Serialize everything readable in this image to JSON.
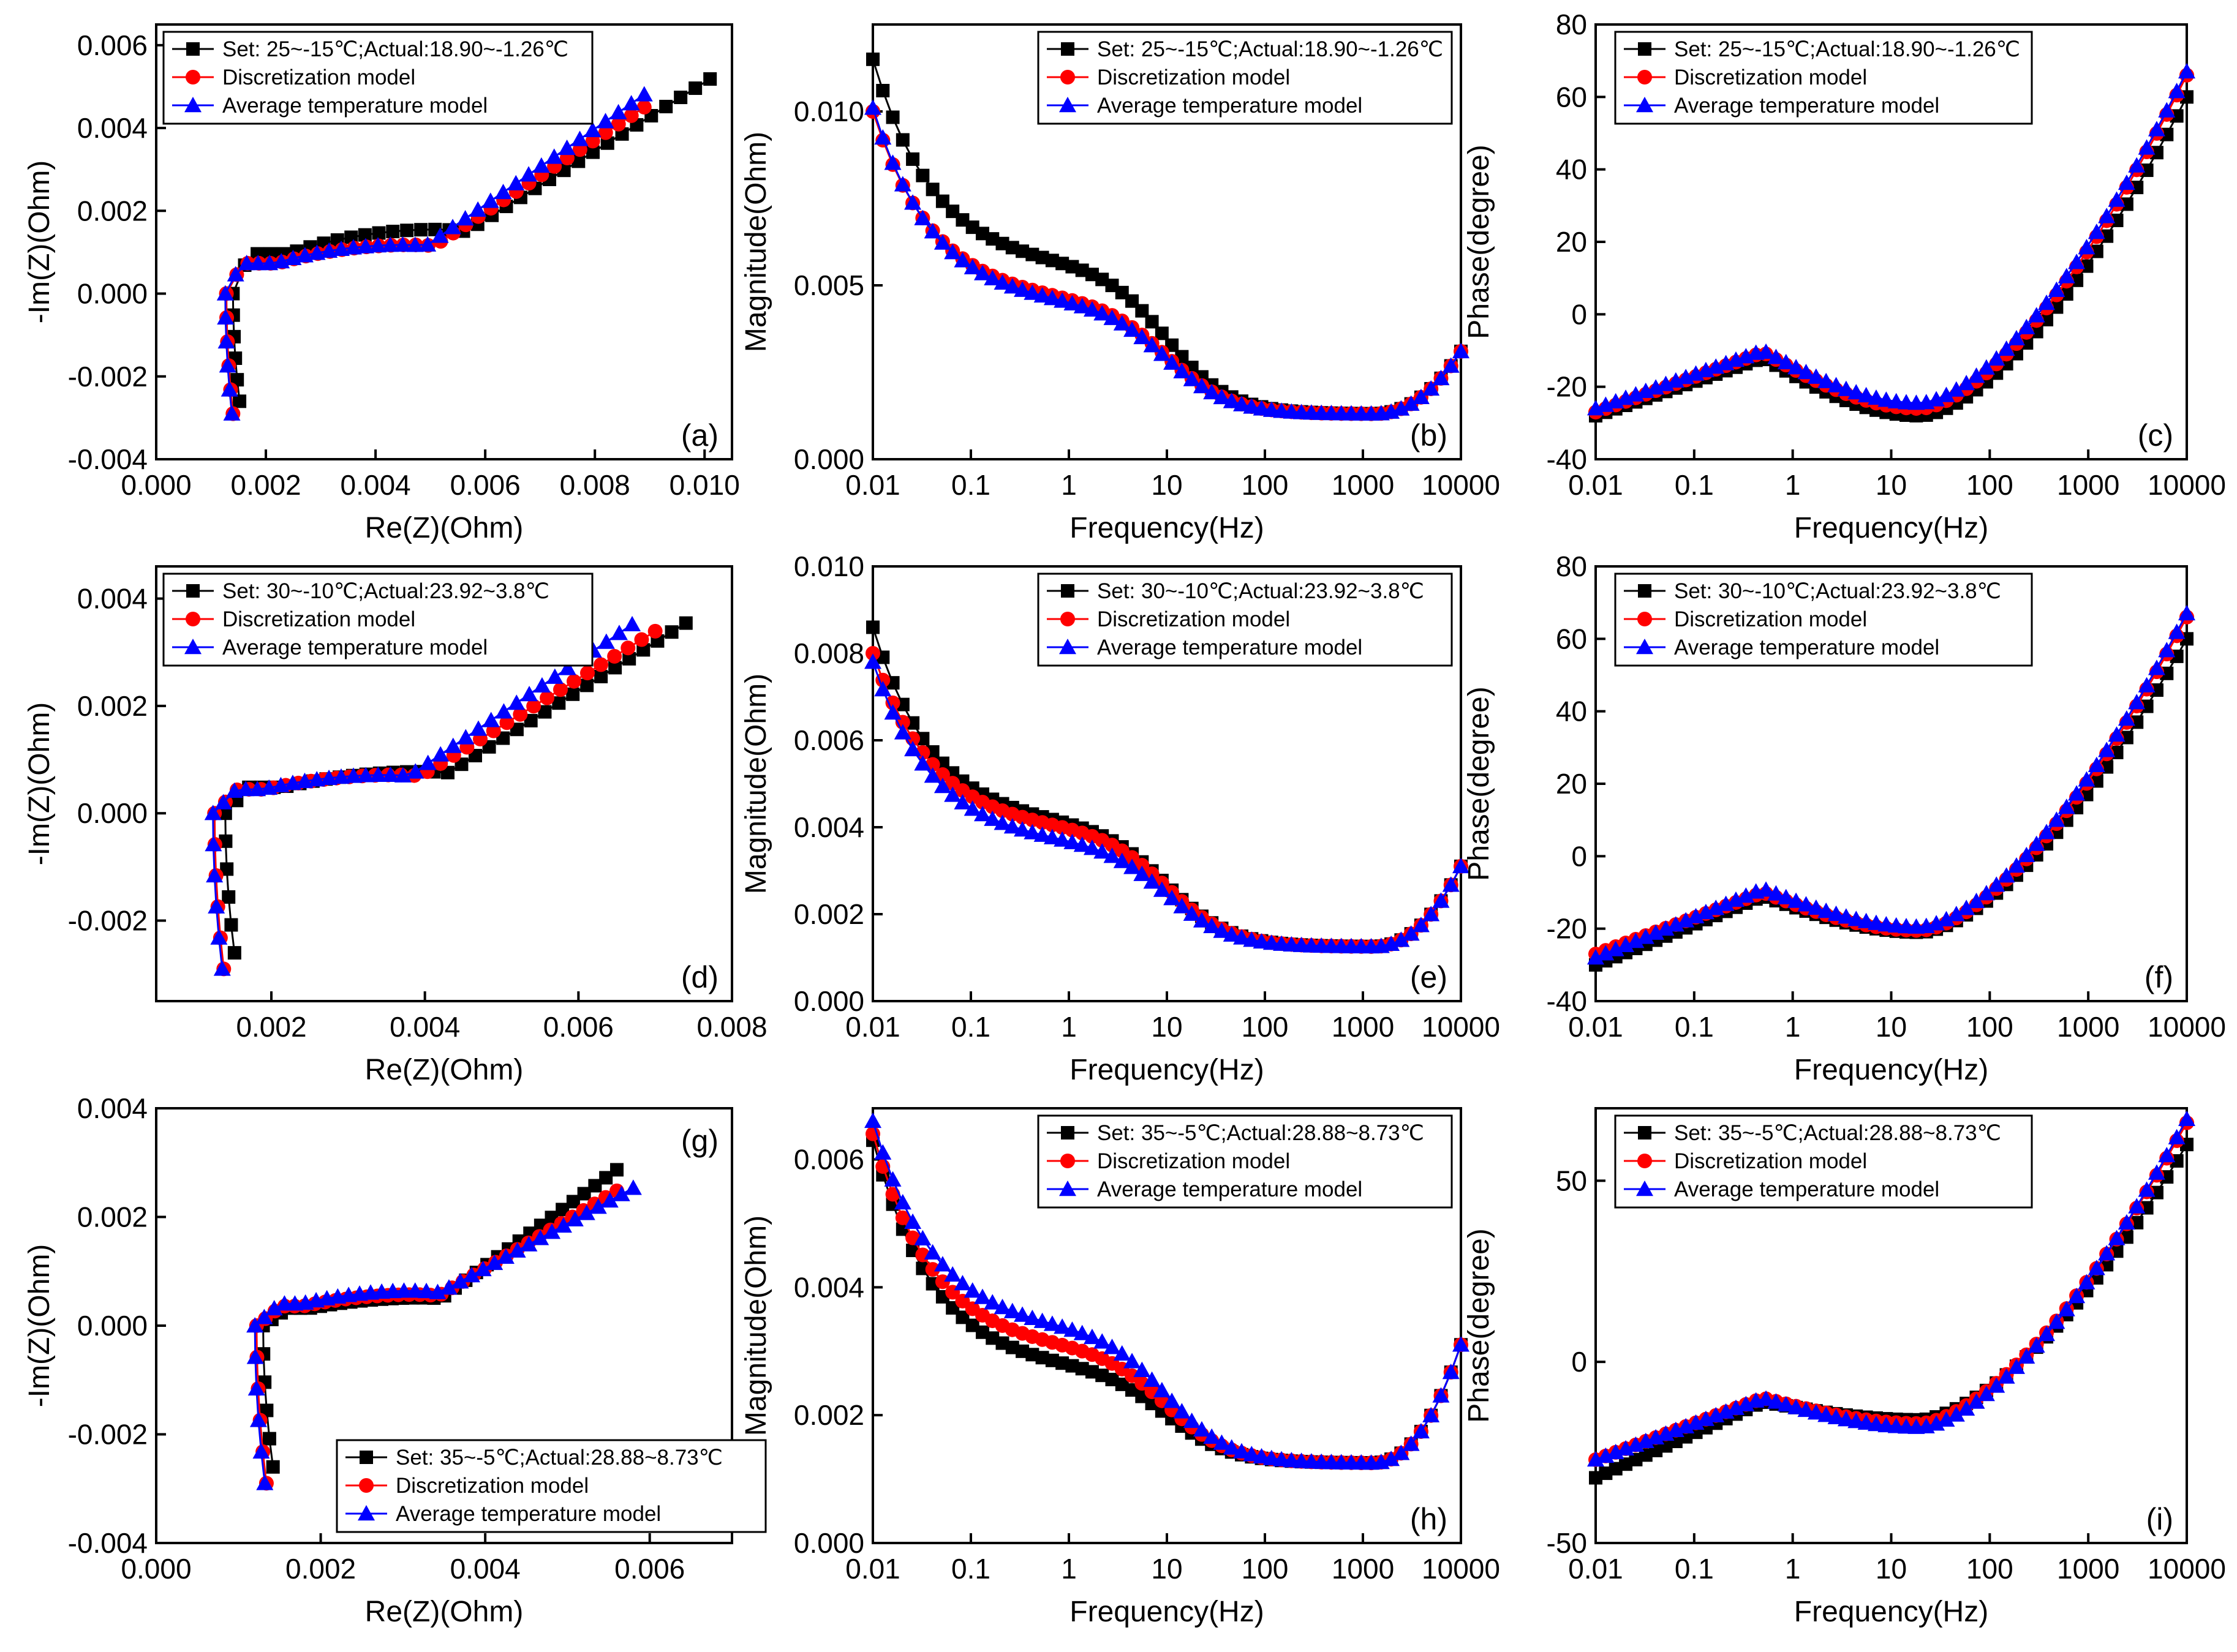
{
  "figure": {
    "description_title": ""
  },
  "colors": {
    "set": "#000000",
    "disc": "#ff0000",
    "avg": "#0000ff"
  },
  "markers": {
    "set": "square",
    "disc": "circle",
    "avg": "triangle"
  },
  "rows": [
    {
      "legend": {
        "set": "Set: 25~-15℃;Actual:18.90~-1.26℃",
        "disc": "Discretization model",
        "avg": "Average temperature model"
      },
      "nyquist": {
        "xlim": [
          0.0,
          0.0105
        ],
        "ylim": [
          -0.004,
          0.0065
        ],
        "xticks": [
          "0.000",
          "0.002",
          "0.004",
          "0.006",
          "0.008",
          "0.010"
        ],
        "yticks": [
          "-0.004",
          "-0.002",
          "0.000",
          "0.002",
          "0.004",
          "0.006"
        ],
        "Rs": [
          0.0014,
          0.00128,
          0.00126
        ],
        "Rct": [
          0.0036,
          0.0033,
          0.0032
        ],
        "Ct": [
          0.00155,
          0.00118,
          0.00118
        ],
        "slope": [
          0.92,
          0.97,
          1.02
        ],
        "endX": [
          0.0101,
          0.0089,
          0.0089
        ],
        "bottom": [
          -0.0026,
          -0.0029,
          -0.0029
        ]
      },
      "magnitude": {
        "ylim": [
          0.0,
          0.0125
        ],
        "yticks": [
          "0.000",
          "0.005",
          "0.010"
        ],
        "start": [
          0.0115,
          0.01,
          0.0101
        ],
        "knee": [
          0.0055,
          0.0045,
          0.0044
        ],
        "min": 0.0013,
        "end": 0.0031
      },
      "phase": {
        "ylim": [
          -40,
          80
        ],
        "yticks": [
          "-40",
          "-20",
          "0",
          "20",
          "40",
          "60",
          "80"
        ],
        "start": [
          -28,
          -27,
          -26
        ],
        "peak": [
          -12,
          -10.5,
          -10
        ],
        "dip": [
          -28,
          -26,
          -24.5
        ],
        "end": [
          60,
          66,
          67
        ]
      },
      "letters": [
        "(a)",
        "(b)",
        "(c)"
      ]
    },
    {
      "legend": {
        "set": "Set: 30~-10℃;Actual:23.92~3.8℃",
        "disc": "Discretization model",
        "avg": "Average temperature model"
      },
      "nyquist": {
        "xlim": [
          0.0005,
          0.008
        ],
        "ylim": [
          -0.0035,
          0.0046
        ],
        "xticks": [
          "0.002",
          "0.004",
          "0.006",
          "0.008"
        ],
        "yticks": [
          "-0.002",
          "0.000",
          "0.002",
          "0.004"
        ],
        "Rs": [
          0.0014,
          0.00126,
          0.00124
        ],
        "Rct": [
          0.0026,
          0.0024,
          0.0023
        ],
        "Ct": [
          0.00078,
          0.00072,
          0.00072
        ],
        "slope": [
          1.0,
          0.98,
          1.08
        ],
        "endX": [
          0.0074,
          0.007,
          0.0067
        ],
        "bottom": [
          -0.0026,
          -0.0029,
          -0.0029
        ]
      },
      "magnitude": {
        "ylim": [
          0.0,
          0.01
        ],
        "yticks": [
          "0.000",
          "0.002",
          "0.004",
          "0.006",
          "0.008",
          "0.010"
        ],
        "start": [
          0.0086,
          0.008,
          0.0078
        ],
        "knee": [
          0.004,
          0.0039,
          0.0036
        ],
        "min": 0.00125,
        "end": 0.0031
      },
      "phase": {
        "ylim": [
          -40,
          80
        ],
        "yticks": [
          "-40",
          "-20",
          "0",
          "20",
          "40",
          "60",
          "80"
        ],
        "start": [
          -30,
          -27,
          -28
        ],
        "peak": [
          -11,
          -10,
          -9
        ],
        "dip": [
          -21,
          -20.5,
          -19.5
        ],
        "end": [
          60,
          66,
          67
        ]
      },
      "letters": [
        "(d)",
        "(e)",
        "(f)"
      ]
    },
    {
      "legend": {
        "set": "Set: 35~-5℃;Actual:28.88~8.73℃",
        "disc": "Discretization model",
        "avg": "Average temperature model"
      },
      "nyquist": {
        "xlim": [
          0.0,
          0.007
        ],
        "ylim": [
          -0.004,
          0.004
        ],
        "xticks": [
          "0.000",
          "0.002",
          "0.004",
          "0.006"
        ],
        "yticks": [
          "-0.004",
          "-0.002",
          "0.000",
          "0.002",
          "0.004"
        ],
        "Rs": [
          0.0013,
          0.00122,
          0.0012
        ],
        "Rct": [
          0.002,
          0.002,
          0.002
        ],
        "Ct": [
          0.00052,
          0.00058,
          0.00065
        ],
        "slope": [
          1.23,
          0.99,
          0.91
        ],
        "endX": [
          0.0056,
          0.0056,
          0.0058
        ],
        "bottom": [
          -0.0026,
          -0.0029,
          -0.0029
        ]
      },
      "magnitude": {
        "ylim": [
          0.0,
          0.0068
        ],
        "yticks": [
          "0.000",
          "0.002",
          "0.004",
          "0.006"
        ],
        "start": [
          0.0063,
          0.0064,
          0.0066
        ],
        "knee": [
          0.0027,
          0.003,
          0.0033
        ],
        "min": 0.00125,
        "end": 0.0031
      },
      "phase": {
        "ylim": [
          -50,
          70
        ],
        "yticks": [
          "-50",
          "0",
          "50"
        ],
        "start": [
          -32,
          -27,
          -27
        ],
        "peak": [
          -11,
          -10,
          -10
        ],
        "dip": [
          -16,
          -17,
          -18
        ],
        "end": [
          60,
          66,
          67
        ]
      },
      "letters": [
        "(g)",
        "(h)",
        "(i)"
      ]
    }
  ],
  "axis_labels": {
    "nyquist_x": "Re(Z)(Ohm)",
    "nyquist_y": "-Im(Z)(Ohm)",
    "freq_x": "Frequency(Hz)",
    "mag_y": "Magnitude(Ohm)",
    "phase_y": "Phase(degree)"
  },
  "freq_ticks": [
    "0.01",
    "0.1",
    "1",
    "10",
    "100",
    "1000",
    "10000"
  ],
  "chart_data": [
    {
      "panel": "(a)",
      "type": "scatter",
      "xlabel": "Re(Z)(Ohm)",
      "ylabel": "-Im(Z)(Ohm)",
      "xlim": [
        0,
        0.0105
      ],
      "ylim": [
        -0.004,
        0.0065
      ]
    },
    {
      "panel": "(b)",
      "type": "line",
      "xlabel": "Frequency(Hz)",
      "ylabel": "Magnitude(Ohm)",
      "xlim": [
        0.01,
        10000
      ],
      "ylim": [
        0,
        0.0125
      ],
      "xscale": "log"
    },
    {
      "panel": "(c)",
      "type": "line",
      "xlabel": "Frequency(Hz)",
      "ylabel": "Phase(degree)",
      "xlim": [
        0.01,
        10000
      ],
      "ylim": [
        -40,
        80
      ],
      "xscale": "log"
    },
    {
      "panel": "(d)",
      "type": "scatter",
      "xlabel": "Re(Z)(Ohm)",
      "ylabel": "-Im(Z)(Ohm)",
      "xlim": [
        0.0005,
        0.008
      ],
      "ylim": [
        -0.0035,
        0.0046
      ]
    },
    {
      "panel": "(e)",
      "type": "line",
      "xlabel": "Frequency(Hz)",
      "ylabel": "Magnitude(Ohm)",
      "xlim": [
        0.01,
        10000
      ],
      "ylim": [
        0,
        0.01
      ],
      "xscale": "log"
    },
    {
      "panel": "(f)",
      "type": "line",
      "xlabel": "Frequency(Hz)",
      "ylabel": "Phase(degree)",
      "xlim": [
        0.01,
        10000
      ],
      "ylim": [
        -40,
        80
      ],
      "xscale": "log"
    },
    {
      "panel": "(g)",
      "type": "scatter",
      "xlabel": "Re(Z)(Ohm)",
      "ylabel": "-Im(Z)(Ohm)",
      "xlim": [
        0,
        0.007
      ],
      "ylim": [
        -0.004,
        0.004
      ]
    },
    {
      "panel": "(h)",
      "type": "line",
      "xlabel": "Frequency(Hz)",
      "ylabel": "Magnitude(Ohm)",
      "xlim": [
        0.01,
        10000
      ],
      "ylim": [
        0,
        0.0068
      ],
      "xscale": "log"
    },
    {
      "panel": "(i)",
      "type": "line",
      "xlabel": "Frequency(Hz)",
      "ylabel": "Phase(degree)",
      "xlim": [
        0.01,
        10000
      ],
      "ylim": [
        -50,
        70
      ],
      "xscale": "log"
    }
  ]
}
